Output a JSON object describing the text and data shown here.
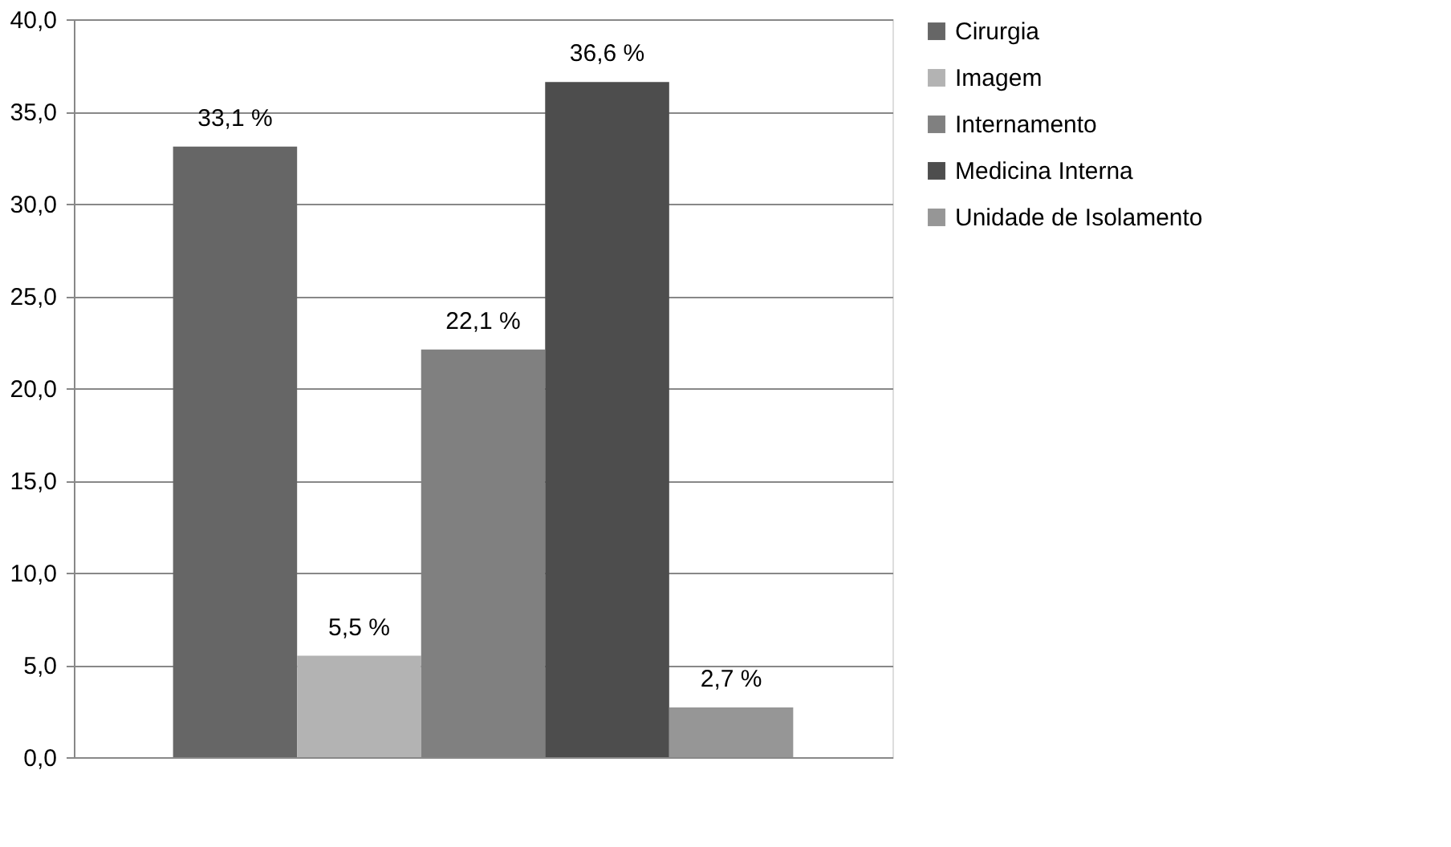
{
  "chart_data": {
    "type": "bar",
    "categories": [
      null
    ],
    "series": [
      {
        "name": "Cirurgia",
        "color": "#666666",
        "values": [
          33.1
        ],
        "value_labels": [
          "33,1 %"
        ]
      },
      {
        "name": "Imagem",
        "color": "#b3b3b3",
        "values": [
          5.5
        ],
        "value_labels": [
          "5,5 %"
        ]
      },
      {
        "name": "Internamento",
        "color": "#808080",
        "values": [
          22.1
        ],
        "value_labels": [
          "22,1 %"
        ]
      },
      {
        "name": "Medicina Interna",
        "color": "#4d4d4d",
        "values": [
          36.6
        ],
        "value_labels": [
          "36,6 %"
        ]
      },
      {
        "name": "Unidade de Isolamento",
        "color": "#969696",
        "values": [
          2.7
        ],
        "value_labels": [
          "2,7 %"
        ]
      }
    ],
    "ylim": [
      0,
      40
    ],
    "yticks": [
      {
        "value": 0,
        "label": "0,0"
      },
      {
        "value": 5,
        "label": "5,0"
      },
      {
        "value": 10,
        "label": "10,0"
      },
      {
        "value": 15,
        "label": "15,0"
      },
      {
        "value": 20,
        "label": "20,0"
      },
      {
        "value": 25,
        "label": "25,0"
      },
      {
        "value": 30,
        "label": "30,0"
      },
      {
        "value": 35,
        "label": "35,0"
      },
      {
        "value": 40,
        "label": "40,0"
      }
    ],
    "grid": "y",
    "legend": "right"
  }
}
